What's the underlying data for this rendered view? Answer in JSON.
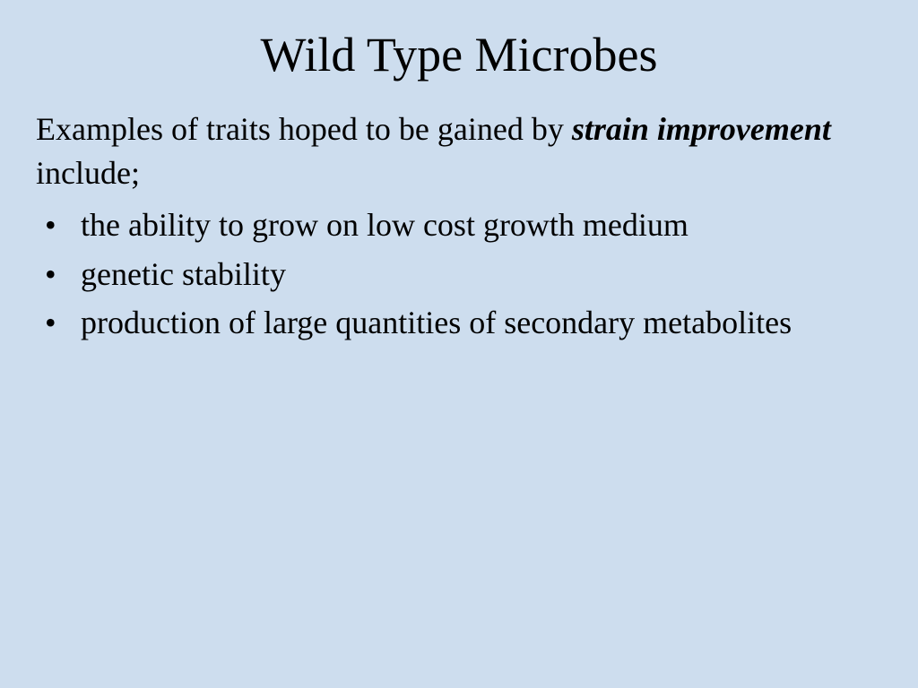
{
  "background_color": "#cdddee",
  "text_color": "#000000",
  "font_family": "Comic Sans MS",
  "title": {
    "text": "Wild Type Microbes",
    "fontsize": 54,
    "align": "center"
  },
  "intro": {
    "prefix": "Examples of traits hoped to be gained by ",
    "emphasis": "strain improvement",
    "suffix": " include;",
    "fontsize": 36
  },
  "bullets": {
    "fontsize": 36,
    "items": [
      "the ability to grow on low cost growth medium",
      "genetic stability",
      "production of large quantities of secondary metabolites"
    ]
  }
}
